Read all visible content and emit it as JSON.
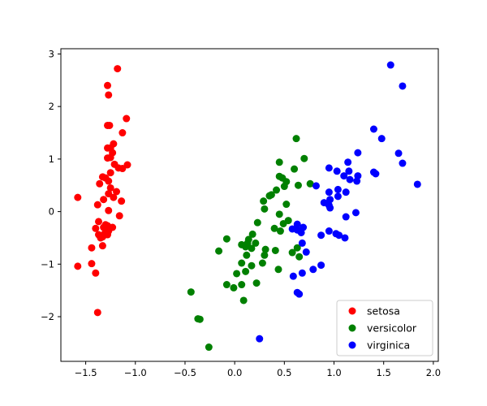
{
  "chart_data": {
    "type": "scatter",
    "title": "",
    "xlabel": "",
    "ylabel": "",
    "xlim": [
      -1.75,
      2.05
    ],
    "ylim": [
      -2.85,
      3.1
    ],
    "xticks": [
      -1.5,
      -1.0,
      -0.5,
      0.0,
      0.5,
      1.0,
      1.5,
      2.0
    ],
    "xtick_labels": [
      "−1.5",
      "−1.0",
      "−0.5",
      "0.0",
      "0.5",
      "1.0",
      "1.5",
      "2.0"
    ],
    "yticks": [
      -2,
      -1,
      0,
      1,
      2,
      3
    ],
    "ytick_labels": [
      "−2",
      "−1",
      "0",
      "1",
      "2",
      "3"
    ],
    "grid": false,
    "legend_position": "bottom-right",
    "series": [
      {
        "name": "setosa",
        "color": "#ff0000",
        "points": [
          [
            -1.18,
            2.72
          ],
          [
            -1.28,
            2.4
          ],
          [
            -1.27,
            2.22
          ],
          [
            -1.28,
            1.64
          ],
          [
            -1.26,
            1.64
          ],
          [
            -1.09,
            1.77
          ],
          [
            -1.13,
            1.5
          ],
          [
            -1.22,
            1.29
          ],
          [
            -1.25,
            1.21
          ],
          [
            -1.28,
            1.21
          ],
          [
            -1.23,
            1.12
          ],
          [
            -1.28,
            1.02
          ],
          [
            -1.25,
            1.03
          ],
          [
            -1.21,
            0.9
          ],
          [
            -1.08,
            0.89
          ],
          [
            -1.17,
            0.83
          ],
          [
            -1.13,
            0.82
          ],
          [
            -1.25,
            0.74
          ],
          [
            -1.33,
            0.66
          ],
          [
            -1.3,
            0.64
          ],
          [
            -1.27,
            0.58
          ],
          [
            -1.36,
            0.53
          ],
          [
            -1.25,
            0.45
          ],
          [
            -1.19,
            0.38
          ],
          [
            -1.27,
            0.34
          ],
          [
            -1.32,
            0.23
          ],
          [
            -1.22,
            0.27
          ],
          [
            -1.14,
            0.2
          ],
          [
            -1.58,
            0.27
          ],
          [
            -1.38,
            0.13
          ],
          [
            -1.27,
            0.02
          ],
          [
            -1.16,
            -0.08
          ],
          [
            -1.37,
            -0.19
          ],
          [
            -1.3,
            -0.25
          ],
          [
            -1.28,
            -0.27
          ],
          [
            -1.32,
            -0.3
          ],
          [
            -1.23,
            -0.3
          ],
          [
            -1.4,
            -0.32
          ],
          [
            -1.27,
            -0.37
          ],
          [
            -1.37,
            -0.44
          ],
          [
            -1.31,
            -0.42
          ],
          [
            -1.28,
            -0.44
          ],
          [
            -1.33,
            -0.48
          ],
          [
            -1.35,
            -0.5
          ],
          [
            -1.33,
            -0.65
          ],
          [
            -1.44,
            -0.69
          ],
          [
            -1.58,
            -1.04
          ],
          [
            -1.44,
            -0.99
          ],
          [
            -1.4,
            -1.17
          ],
          [
            -1.38,
            -1.92
          ]
        ]
      },
      {
        "name": "versicolor",
        "color": "#008000",
        "points": [
          [
            0.62,
            1.39
          ],
          [
            0.7,
            1.01
          ],
          [
            0.45,
            0.94
          ],
          [
            0.6,
            0.81
          ],
          [
            0.45,
            0.67
          ],
          [
            0.48,
            0.64
          ],
          [
            0.52,
            0.57
          ],
          [
            0.76,
            0.53
          ],
          [
            0.64,
            0.5
          ],
          [
            0.5,
            0.48
          ],
          [
            0.42,
            0.41
          ],
          [
            0.37,
            0.32
          ],
          [
            0.35,
            0.3
          ],
          [
            0.29,
            0.2
          ],
          [
            0.52,
            0.14
          ],
          [
            0.3,
            0.05
          ],
          [
            0.45,
            -0.05
          ],
          [
            0.54,
            -0.17
          ],
          [
            0.49,
            -0.23
          ],
          [
            0.23,
            -0.21
          ],
          [
            0.4,
            -0.32
          ],
          [
            0.46,
            -0.37
          ],
          [
            0.18,
            -0.43
          ],
          [
            0.14,
            -0.53
          ],
          [
            0.21,
            -0.6
          ],
          [
            0.13,
            -0.6
          ],
          [
            0.07,
            -0.63
          ],
          [
            0.11,
            -0.67
          ],
          [
            0.17,
            -0.7
          ],
          [
            0.31,
            -0.72
          ],
          [
            0.41,
            -0.74
          ],
          [
            0.12,
            -0.83
          ],
          [
            0.3,
            -0.83
          ],
          [
            0.58,
            -0.78
          ],
          [
            0.65,
            -0.86
          ],
          [
            0.28,
            -0.98
          ],
          [
            0.17,
            -1.03
          ],
          [
            0.44,
            -1.1
          ],
          [
            0.63,
            -0.69
          ],
          [
            -0.08,
            -0.52
          ],
          [
            -0.16,
            -0.75
          ],
          [
            0.07,
            -0.98
          ],
          [
            0.02,
            -1.18
          ],
          [
            0.11,
            -1.14
          ],
          [
            0.22,
            -1.36
          ],
          [
            0.07,
            -1.39
          ],
          [
            -0.08,
            -1.39
          ],
          [
            -0.01,
            -1.45
          ],
          [
            0.09,
            -1.69
          ],
          [
            -0.44,
            -1.53
          ],
          [
            -0.37,
            -2.04
          ],
          [
            -0.35,
            -2.05
          ],
          [
            -0.26,
            -2.58
          ]
        ]
      },
      {
        "name": "virginica",
        "color": "#0000ff",
        "points": [
          [
            1.57,
            2.79
          ],
          [
            1.69,
            2.39
          ],
          [
            1.4,
            1.57
          ],
          [
            1.48,
            1.39
          ],
          [
            1.24,
            1.12
          ],
          [
            1.65,
            1.11
          ],
          [
            1.69,
            0.92
          ],
          [
            1.14,
            0.94
          ],
          [
            0.95,
            0.83
          ],
          [
            1.03,
            0.77
          ],
          [
            1.15,
            0.77
          ],
          [
            1.4,
            0.75
          ],
          [
            1.42,
            0.72
          ],
          [
            1.24,
            0.68
          ],
          [
            1.1,
            0.68
          ],
          [
            1.16,
            0.61
          ],
          [
            1.23,
            0.58
          ],
          [
            1.84,
            0.52
          ],
          [
            0.82,
            0.49
          ],
          [
            1.04,
            0.42
          ],
          [
            1.12,
            0.37
          ],
          [
            0.95,
            0.37
          ],
          [
            1.04,
            0.29
          ],
          [
            0.96,
            0.23
          ],
          [
            0.9,
            0.17
          ],
          [
            0.95,
            0.12
          ],
          [
            0.96,
            0.07
          ],
          [
            1.22,
            -0.02
          ],
          [
            1.12,
            -0.1
          ],
          [
            0.58,
            -0.33
          ],
          [
            0.63,
            -0.35
          ],
          [
            0.69,
            -0.3
          ],
          [
            0.67,
            -0.4
          ],
          [
            0.63,
            -0.24
          ],
          [
            0.87,
            -0.45
          ],
          [
            0.95,
            -0.37
          ],
          [
            1.02,
            -0.42
          ],
          [
            1.05,
            -0.45
          ],
          [
            1.11,
            -0.5
          ],
          [
            0.68,
            -0.6
          ],
          [
            0.72,
            -0.77
          ],
          [
            0.87,
            -1.02
          ],
          [
            0.79,
            -1.1
          ],
          [
            0.68,
            -1.17
          ],
          [
            0.59,
            -1.23
          ],
          [
            0.63,
            -1.54
          ],
          [
            0.65,
            -1.57
          ],
          [
            0.25,
            -2.42
          ]
        ]
      }
    ]
  }
}
